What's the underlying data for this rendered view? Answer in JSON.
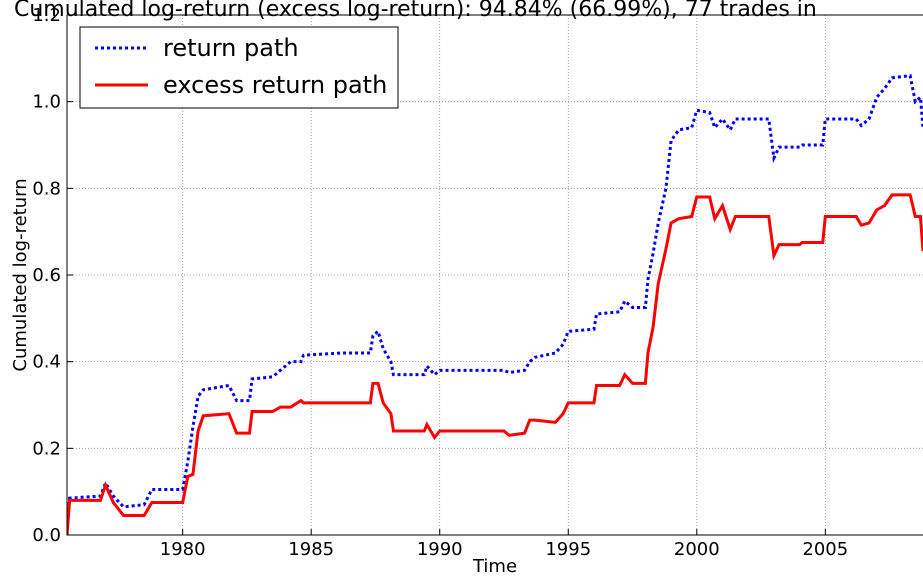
{
  "chart_data": {
    "type": "line",
    "title": "Cumulated log-return (excess log-return): 94.84% (66.99%), 77 trades in",
    "xlabel": "Time",
    "ylabel": "Cumulated log-return",
    "xlim": [
      1975.5,
      2008.8
    ],
    "ylim": [
      0,
      1.2
    ],
    "xticks": [
      1980,
      1985,
      1990,
      1995,
      2000,
      2005
    ],
    "yticks": [
      {
        "value": 0,
        "label": "0.0"
      },
      0.2,
      0.4,
      0.6,
      0.8,
      {
        "value": 1,
        "label": "1.0"
      },
      1.2
    ],
    "grid": true,
    "legend": "upper left",
    "x": [
      1975.5,
      1975.6,
      1976.8,
      1977.0,
      1977.3,
      1977.7,
      1978.5,
      1978.8,
      1980.0,
      1980.2,
      1980.4,
      1980.6,
      1980.8,
      1981.8,
      1982.1,
      1982.6,
      1982.7,
      1983.5,
      1983.8,
      1984.2,
      1984.6,
      1984.7,
      1986.2,
      1987.3,
      1987.4,
      1987.6,
      1987.8,
      1988.1,
      1988.2,
      1989.4,
      1989.5,
      1989.8,
      1990.0,
      1992.5,
      1992.7,
      1993.3,
      1993.5,
      1993.7,
      1994.5,
      1994.8,
      1995.0,
      1996.0,
      1996.1,
      1997.0,
      1997.2,
      1997.5,
      1998.0,
      1998.1,
      1998.3,
      1998.5,
      1998.8,
      1999.0,
      1999.3,
      1999.8,
      2000.0,
      2000.5,
      2000.7,
      2001.0,
      2001.3,
      2001.5,
      2002.8,
      2003.0,
      2003.2,
      2004.0,
      2004.1,
      2004.9,
      2005.0,
      2006.2,
      2006.4,
      2006.7,
      2007.0,
      2007.3,
      2007.6,
      2008.3,
      2008.5,
      2008.7,
      2008.8
    ],
    "series": [
      {
        "name": "return path",
        "color": "#0000ff",
        "style": "dotted",
        "values": [
          0.0,
          0.085,
          0.09,
          0.12,
          0.09,
          0.065,
          0.07,
          0.105,
          0.105,
          0.17,
          0.25,
          0.32,
          0.335,
          0.345,
          0.31,
          0.31,
          0.36,
          0.365,
          0.38,
          0.4,
          0.4,
          0.415,
          0.42,
          0.42,
          0.46,
          0.47,
          0.43,
          0.4,
          0.37,
          0.37,
          0.39,
          0.37,
          0.38,
          0.38,
          0.375,
          0.38,
          0.4,
          0.41,
          0.42,
          0.44,
          0.47,
          0.475,
          0.51,
          0.515,
          0.54,
          0.525,
          0.525,
          0.59,
          0.65,
          0.72,
          0.8,
          0.91,
          0.935,
          0.94,
          0.98,
          0.975,
          0.94,
          0.96,
          0.935,
          0.96,
          0.96,
          0.87,
          0.895,
          0.895,
          0.9,
          0.9,
          0.96,
          0.96,
          0.945,
          0.96,
          1.01,
          1.03,
          1.055,
          1.06,
          1.0,
          1.01,
          0.94
        ]
      },
      {
        "name": "excess return path",
        "color": "#ff0000",
        "style": "solid",
        "values": [
          0.0,
          0.08,
          0.08,
          0.115,
          0.075,
          0.045,
          0.045,
          0.075,
          0.075,
          0.135,
          0.14,
          0.24,
          0.275,
          0.28,
          0.235,
          0.235,
          0.285,
          0.285,
          0.295,
          0.295,
          0.31,
          0.305,
          0.305,
          0.305,
          0.35,
          0.35,
          0.305,
          0.28,
          0.24,
          0.24,
          0.255,
          0.225,
          0.24,
          0.24,
          0.23,
          0.235,
          0.265,
          0.265,
          0.26,
          0.28,
          0.305,
          0.305,
          0.345,
          0.345,
          0.37,
          0.35,
          0.35,
          0.42,
          0.48,
          0.58,
          0.66,
          0.72,
          0.73,
          0.735,
          0.78,
          0.78,
          0.73,
          0.76,
          0.705,
          0.735,
          0.735,
          0.645,
          0.67,
          0.67,
          0.675,
          0.675,
          0.735,
          0.735,
          0.715,
          0.72,
          0.75,
          0.76,
          0.785,
          0.785,
          0.735,
          0.735,
          0.655
        ]
      }
    ]
  }
}
